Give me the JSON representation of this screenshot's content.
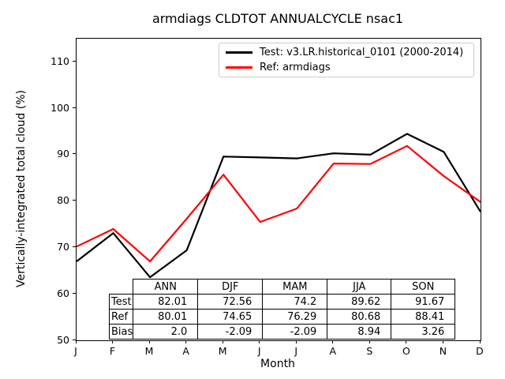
{
  "title": "armdiags CLDTOT ANNUALCYCLE nsac1",
  "axes": {
    "xlabel": "Month",
    "ylabel": "Vertically-integrated total cloud (%)",
    "x_tick_labels": [
      "J",
      "F",
      "M",
      "A",
      "M",
      "J",
      "J",
      "A",
      "S",
      "O",
      "N",
      "D"
    ],
    "y_tick_labels": [
      "50",
      "60",
      "70",
      "80",
      "90",
      "100",
      "110"
    ],
    "ylim": [
      50,
      115
    ]
  },
  "legend": {
    "items": [
      {
        "label": "Test: v3.LR.historical_0101 (2000-2014)",
        "color": "#000000"
      },
      {
        "label": "Ref: armdiags",
        "color": "#ff0000"
      }
    ]
  },
  "stats_table": {
    "columns": [
      "ANN",
      "DJF",
      "MAM",
      "JJA",
      "SON"
    ],
    "rows": [
      {
        "label": "Test",
        "values": [
          "82.01",
          "72.56",
          "74.2",
          "89.62",
          "91.67"
        ]
      },
      {
        "label": "Ref",
        "values": [
          "80.01",
          "74.65",
          "76.29",
          "80.68",
          "88.41"
        ]
      },
      {
        "label": "Bias",
        "values": [
          "2.0",
          "-2.09",
          "-2.09",
          "8.94",
          "3.26"
        ]
      }
    ]
  },
  "chart_data": {
    "type": "line",
    "title": "armdiags CLDTOT ANNUALCYCLE nsac1",
    "xlabel": "Month",
    "ylabel": "Vertically-integrated total cloud (%)",
    "categories": [
      "J",
      "F",
      "M",
      "A",
      "M",
      "J",
      "J",
      "A",
      "S",
      "O",
      "N",
      "D"
    ],
    "ylim": [
      50,
      115
    ],
    "y_ticks": [
      50,
      60,
      70,
      80,
      90,
      100,
      110
    ],
    "grid": false,
    "legend_position": "upper right",
    "series": [
      {
        "name": "Test: v3.LR.historical_0101 (2000-2014)",
        "color": "#000000",
        "values": [
          67.0,
          73.1,
          63.6,
          69.4,
          89.6,
          89.4,
          89.2,
          90.3,
          90.0,
          94.5,
          90.6,
          77.7
        ],
        "values_note": "monthly values estimated from plotted line",
        "seasonal_means": {
          "ANN": 82.01,
          "DJF": 72.56,
          "MAM": 74.2,
          "JJA": 89.62,
          "SON": 91.67
        }
      },
      {
        "name": "Ref: armdiags",
        "color": "#ff0000",
        "values": [
          70.2,
          74.0,
          67.0,
          76.2,
          85.7,
          75.5,
          78.4,
          88.1,
          88.0,
          91.9,
          85.4,
          79.8
        ],
        "values_note": "monthly values estimated from plotted line",
        "seasonal_means": {
          "ANN": 80.01,
          "DJF": 74.65,
          "MAM": 76.29,
          "JJA": 80.68,
          "SON": 88.41
        }
      }
    ],
    "bias_row": {
      "ANN": 2.0,
      "DJF": -2.09,
      "MAM": -2.09,
      "JJA": 8.94,
      "SON": 3.26
    }
  }
}
